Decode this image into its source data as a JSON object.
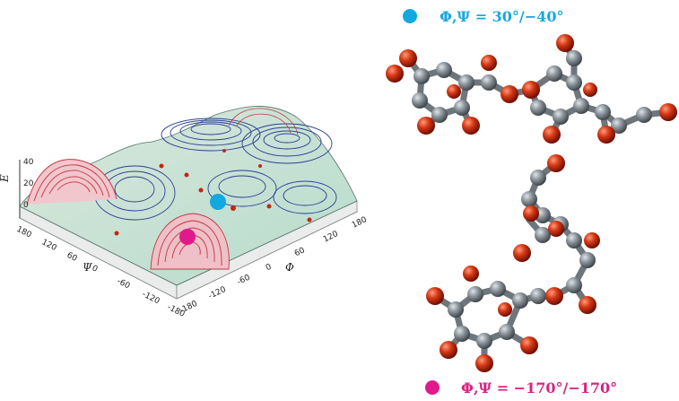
{
  "landscape": {
    "z_axis_label": "E",
    "z_ticks": [
      "40",
      "20",
      "0"
    ],
    "psi_label": "Ψ",
    "psi_ticks": [
      "180",
      "120",
      "60",
      "0",
      "-60",
      "-120",
      "-180"
    ],
    "phi_label": "Φ",
    "phi_ticks": [
      "-180",
      "-120",
      "-60",
      "0",
      "60",
      "120",
      "180"
    ]
  },
  "conformers": [
    {
      "label": "Φ,Ψ = 30°/−40°",
      "marker_color": "#12a8e0",
      "text_color": "#1aa7db"
    },
    {
      "label": "Φ,Ψ = −170°/−170°",
      "marker_color": "#e01a8c",
      "text_color": "#d8247f"
    }
  ],
  "colors": {
    "carbon": "#7f8890",
    "oxygen": "#c8250e",
    "surface_low": "#a9d6c4",
    "surface_high": "#e58f9c",
    "contour_blue": "#2b3f92",
    "contour_red": "#c2373f"
  }
}
